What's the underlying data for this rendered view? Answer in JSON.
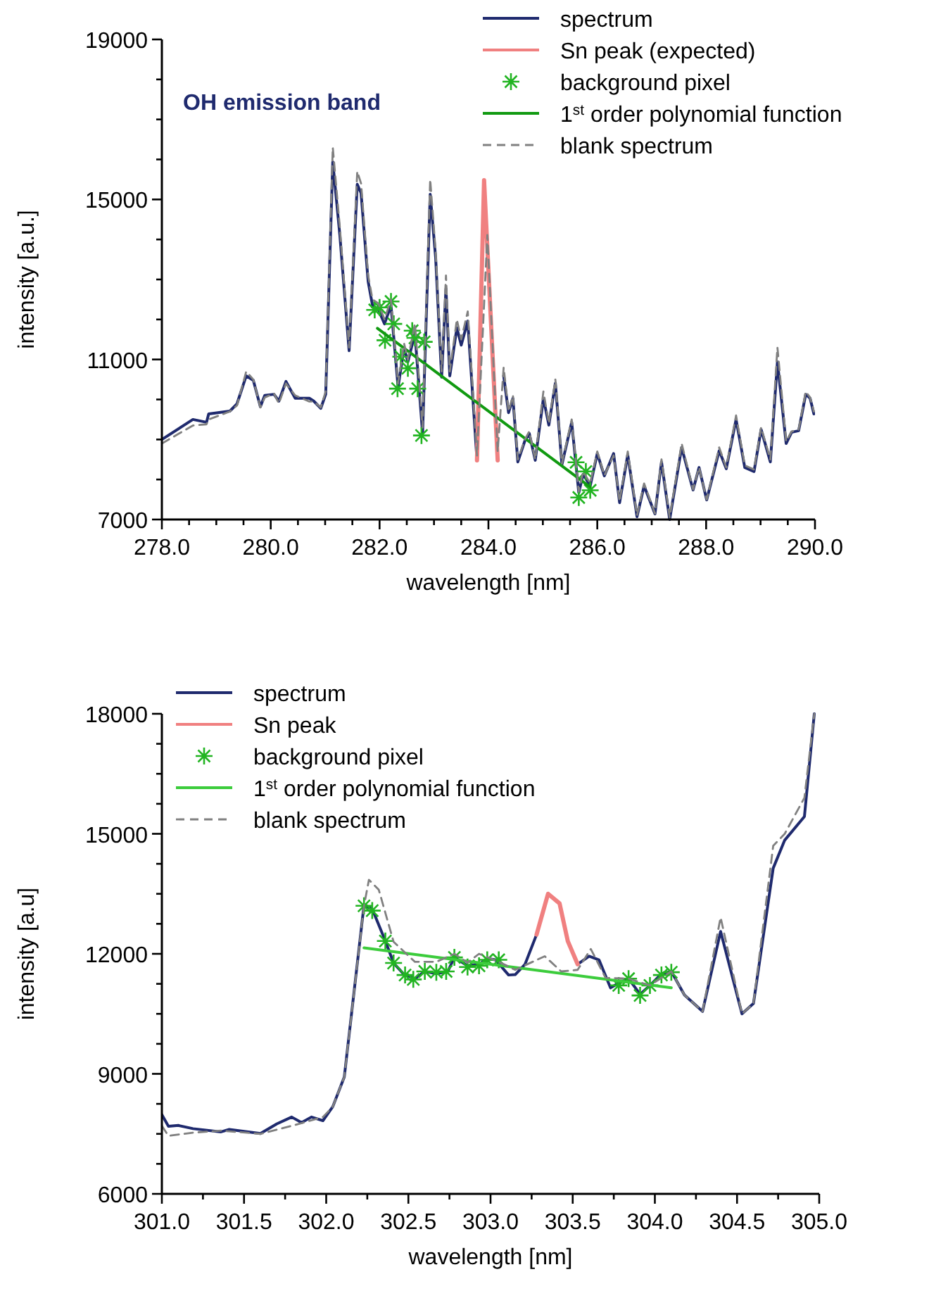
{
  "chart_data": [
    {
      "type": "line",
      "xlabel": "wavelength [nm]",
      "ylabel": "intensity [a.u.]",
      "annotations": [
        "OH emission band"
      ],
      "legend": "top right",
      "xlim": [
        278,
        290
      ],
      "ylim": [
        7000,
        19000
      ],
      "xticks": [
        {
          "value": 278,
          "label": "278.0"
        },
        {
          "value": 278.5,
          "label": null
        },
        {
          "value": 279,
          "label": null
        },
        {
          "value": 279.5,
          "label": null
        },
        {
          "value": 280,
          "label": "280.0"
        },
        {
          "value": 280.5,
          "label": null
        },
        {
          "value": 281,
          "label": null
        },
        {
          "value": 281.5,
          "label": null
        },
        {
          "value": 282,
          "label": "282.0"
        },
        {
          "value": 282.5,
          "label": null
        },
        {
          "value": 283,
          "label": null
        },
        {
          "value": 283.5,
          "label": null
        },
        {
          "value": 284,
          "label": "284.0"
        },
        {
          "value": 284.5,
          "label": null
        },
        {
          "value": 285,
          "label": null
        },
        {
          "value": 285.5,
          "label": null
        },
        {
          "value": 286,
          "label": "286.0"
        },
        {
          "value": 286.5,
          "label": null
        },
        {
          "value": 287,
          "label": null
        },
        {
          "value": 287.5,
          "label": null
        },
        {
          "value": 288,
          "label": "288.0"
        },
        {
          "value": 288.5,
          "label": null
        },
        {
          "value": 289,
          "label": null
        },
        {
          "value": 289.5,
          "label": null
        },
        {
          "value": 290,
          "label": "290.0"
        }
      ],
      "yticks": [
        7000,
        {
          "value": 8000,
          "label": null
        },
        {
          "value": 9000,
          "label": null
        },
        {
          "value": 10000,
          "label": null
        },
        11000,
        {
          "value": 12000,
          "label": null
        },
        {
          "value": 13000,
          "label": null
        },
        {
          "value": 14000,
          "label": null
        },
        15000,
        {
          "value": 16000,
          "label": null
        },
        {
          "value": 17000,
          "label": null
        },
        {
          "value": 18000,
          "label": null
        },
        19000
      ],
      "series": [
        {
          "name": "spectrum",
          "type": "line",
          "color": "#1f2a6e",
          "line_style": "solid",
          "x": [
            278.0,
            278.57,
            278.82,
            278.86,
            279.25,
            279.38,
            279.55,
            279.68,
            279.81,
            279.89,
            280.06,
            280.15,
            280.28,
            280.45,
            280.71,
            280.79,
            280.92,
            281.01,
            281.14,
            281.27,
            281.44,
            281.59,
            281.66,
            281.79,
            281.87,
            281.98,
            282.09,
            282.21,
            282.34,
            282.45,
            282.52,
            282.65,
            282.79,
            282.93,
            283.03,
            283.14,
            283.22,
            283.29,
            283.42,
            283.5,
            283.62,
            283.79,
            283.92,
            284.28,
            284.37,
            284.45,
            284.54,
            284.67,
            284.75,
            284.86,
            285.01,
            285.11,
            285.23,
            285.35,
            285.53,
            285.66,
            285.74,
            285.87,
            286.0,
            286.13,
            286.3,
            286.41,
            286.56,
            286.73,
            286.86,
            287.06,
            287.18,
            287.33,
            287.55,
            287.76,
            287.87,
            288.01,
            288.24,
            288.37,
            288.55,
            288.71,
            288.88,
            289.01,
            289.18,
            289.31,
            289.47,
            289.57,
            289.7,
            289.83,
            289.91,
            289.98
          ],
          "values": [
            9000,
            9500,
            9430,
            9640,
            9710,
            9890,
            10590,
            10480,
            9820,
            10100,
            10130,
            9960,
            10450,
            10030,
            10030,
            9960,
            9780,
            10130,
            15940,
            14110,
            11220,
            15380,
            15160,
            12950,
            12350,
            12240,
            11890,
            12350,
            10310,
            11290,
            10940,
            11650,
            9150,
            15130,
            13550,
            10560,
            12770,
            10590,
            11790,
            11360,
            11960,
            8480,
            null,
            10590,
            9670,
            10030,
            8440,
            8970,
            9150,
            8480,
            10030,
            9360,
            10410,
            8370,
            9430,
            7670,
            8130,
            7840,
            8650,
            8090,
            8650,
            7420,
            8620,
            7070,
            7840,
            7140,
            8440,
            7000,
            8800,
            7740,
            8300,
            7490,
            8720,
            8270,
            9500,
            8300,
            8200,
            9250,
            8440,
            10940,
            8900,
            9180,
            9220,
            10130,
            10030,
            9640
          ]
        },
        {
          "name": "Sn peak (expected)",
          "type": "line",
          "color": "#f08080",
          "line_style": "solid",
          "x": [
            283.79,
            283.92,
            284.17
          ],
          "values": [
            8480,
            15480,
            8480
          ]
        },
        {
          "name": "background pixel",
          "type": "scatter",
          "color": "#22b422",
          "marker": "cross",
          "x": [
            281.91,
            282.0,
            282.21,
            282.26,
            282.1,
            282.39,
            282.52,
            282.33,
            282.6,
            282.65,
            282.82,
            282.7,
            282.77,
            285.61,
            285.79,
            285.87,
            285.66
          ],
          "values": [
            12240,
            12300,
            12450,
            11890,
            11480,
            11070,
            10780,
            10270,
            11720,
            11540,
            11440,
            10270,
            9100,
            8430,
            8200,
            7730,
            7550
          ]
        },
        {
          "name": "1$^{st}$ order polynomial function",
          "type": "line",
          "color": "#119a11",
          "line_style": "solid",
          "x": [
            281.96,
            285.87
          ],
          "values": [
            11780,
            7810
          ]
        },
        {
          "name": "blank spectrum",
          "type": "line",
          "color": "#808080",
          "line_style": "dashed",
          "x": [
            278.0,
            278.57,
            278.82,
            278.86,
            279.25,
            279.38,
            279.55,
            279.68,
            279.81,
            279.89,
            280.06,
            280.15,
            280.28,
            280.45,
            280.71,
            280.79,
            280.92,
            281.01,
            281.14,
            281.27,
            281.44,
            281.59,
            281.66,
            281.79,
            281.87,
            281.98,
            282.09,
            282.21,
            282.34,
            282.45,
            282.52,
            282.65,
            282.79,
            282.93,
            283.03,
            283.14,
            283.22,
            283.29,
            283.42,
            283.5,
            283.62,
            283.79,
            283.98,
            284.17,
            284.28,
            284.37,
            284.45,
            284.54,
            284.67,
            284.75,
            284.86,
            285.01,
            285.11,
            285.23,
            285.35,
            285.53,
            285.66,
            285.74,
            285.87,
            286.0,
            286.13,
            286.3,
            286.41,
            286.56,
            286.73,
            286.86,
            287.06,
            287.18,
            287.33,
            287.55,
            287.76,
            287.87,
            288.01,
            288.24,
            288.37,
            288.55,
            288.71,
            288.88,
            289.01,
            289.18,
            289.31,
            289.47,
            289.57,
            289.7,
            289.83,
            289.91,
            289.98
          ],
          "values": [
            8900,
            9350,
            9380,
            9500,
            9700,
            9850,
            10700,
            10500,
            9800,
            10050,
            10150,
            9900,
            10400,
            10100,
            9950,
            9950,
            9800,
            10200,
            16300,
            14300,
            11300,
            15700,
            15400,
            13100,
            12500,
            12400,
            12000,
            12500,
            10400,
            11400,
            11000,
            11900,
            9300,
            15500,
            13700,
            10700,
            13100,
            10700,
            12000,
            11500,
            12200,
            8600,
            14110,
            8700,
            10800,
            9700,
            10100,
            8500,
            9000,
            9200,
            8500,
            10200,
            9400,
            10500,
            8400,
            9500,
            7700,
            8200,
            7900,
            8700,
            8100,
            8600,
            7450,
            8700,
            7100,
            7900,
            7150,
            8500,
            7050,
            8900,
            7750,
            8300,
            7500,
            8800,
            8300,
            9600,
            8350,
            8250,
            9300,
            8500,
            11300,
            8950,
            9200,
            9250,
            10200,
            10050,
            9700
          ]
        }
      ]
    },
    {
      "type": "line",
      "xlabel": "wavelength [nm]",
      "ylabel": "intensity [a.u]",
      "legend": "top left",
      "xlim": [
        301,
        305
      ],
      "ylim": [
        6000,
        18000
      ],
      "xticks": [
        {
          "value": 301,
          "label": "301.0"
        },
        {
          "value": 301.25,
          "label": null
        },
        {
          "value": 301.5,
          "label": "301.5"
        },
        {
          "value": 301.75,
          "label": null
        },
        {
          "value": 302,
          "label": "302.0"
        },
        {
          "value": 302.25,
          "label": null
        },
        {
          "value": 302.5,
          "label": "302.5"
        },
        {
          "value": 302.75,
          "label": null
        },
        {
          "value": 303,
          "label": "303.0"
        },
        {
          "value": 303.25,
          "label": null
        },
        {
          "value": 303.5,
          "label": "303.5"
        },
        {
          "value": 303.75,
          "label": null
        },
        {
          "value": 304,
          "label": "304.0"
        },
        {
          "value": 304.25,
          "label": null
        },
        {
          "value": 304.5,
          "label": "304.5"
        },
        {
          "value": 304.75,
          "label": null
        },
        {
          "value": 305,
          "label": "305.0"
        }
      ],
      "yticks": [
        6000,
        {
          "value": 6750,
          "label": null
        },
        {
          "value": 7500,
          "label": null
        },
        {
          "value": 8250,
          "label": null
        },
        9000,
        {
          "value": 9750,
          "label": null
        },
        {
          "value": 10500,
          "label": null
        },
        {
          "value": 11250,
          "label": null
        },
        12000,
        {
          "value": 12750,
          "label": null
        },
        {
          "value": 13500,
          "label": null
        },
        {
          "value": 14250,
          "label": null
        },
        15000,
        {
          "value": 15750,
          "label": null
        },
        {
          "value": 16500,
          "label": null
        },
        {
          "value": 17250,
          "label": null
        },
        18000
      ],
      "series": [
        {
          "name": "spectrum",
          "type": "line",
          "color": "#1f2a6e",
          "line_style": "solid",
          "x": [
            301.0,
            301.04,
            301.1,
            301.19,
            301.36,
            301.41,
            301.6,
            301.7,
            301.79,
            301.85,
            301.91,
            301.98,
            302.04,
            302.11,
            302.23,
            302.28,
            302.36,
            302.41,
            302.47,
            302.54,
            302.6,
            302.67,
            302.74,
            302.78,
            302.86,
            302.93,
            302.98,
            303.03,
            303.11,
            303.15,
            303.21,
            303.28,
            303.35,
            303.53,
            303.6,
            303.66,
            303.73,
            303.78,
            303.84,
            303.91,
            303.97,
            304.04,
            304.1,
            304.18,
            304.29,
            304.4,
            304.53,
            304.6,
            304.72,
            304.79,
            304.91,
            304.97
          ],
          "values": [
            7980,
            7690,
            7710,
            7630,
            7550,
            7610,
            7510,
            7750,
            7920,
            7780,
            7920,
            7830,
            8180,
            8920,
            13220,
            13120,
            12320,
            11770,
            11500,
            11380,
            11560,
            11500,
            11560,
            11910,
            11700,
            11740,
            11880,
            11850,
            11470,
            11480,
            11740,
            12480,
            null,
            11740,
            11940,
            11850,
            11150,
            11270,
            11380,
            10990,
            11210,
            11500,
            11560,
            10970,
            10560,
            12560,
            10500,
            10760,
            14140,
            14840,
            15430,
            18000
          ]
        },
        {
          "name": "Sn peak",
          "type": "line",
          "color": "#f08080",
          "line_style": "solid",
          "x": [
            303.28,
            303.35,
            303.42,
            303.47,
            303.53
          ],
          "values": [
            12480,
            13500,
            13260,
            12320,
            11740
          ]
        },
        {
          "name": "background pixel",
          "type": "scatter",
          "color": "#22b422",
          "marker": "cross",
          "x": [
            302.23,
            302.28,
            302.36,
            302.41,
            302.48,
            302.53,
            302.6,
            302.67,
            302.73,
            302.78,
            302.86,
            302.93,
            302.98,
            303.05,
            303.78,
            303.84,
            303.91,
            303.97,
            304.04,
            304.1
          ],
          "values": [
            13200,
            13080,
            12320,
            11770,
            11470,
            11360,
            11560,
            11540,
            11560,
            11910,
            11670,
            11700,
            11850,
            11850,
            11210,
            11380,
            10960,
            11210,
            11470,
            11540
          ]
        },
        {
          "name": "1$^{st}$ order polynomial function",
          "type": "line",
          "color": "#3ccc3c",
          "line_style": "solid",
          "x": [
            302.23,
            304.1
          ],
          "values": [
            12150,
            11150
          ]
        },
        {
          "name": "blank spectrum",
          "type": "line",
          "color": "#808080",
          "line_style": "dashed",
          "x": [
            301.0,
            301.04,
            301.19,
            301.36,
            301.6,
            301.79,
            301.98,
            302.04,
            302.11,
            302.23,
            302.26,
            302.32,
            302.41,
            302.54,
            302.67,
            302.78,
            302.86,
            302.93,
            303.05,
            303.15,
            303.33,
            303.43,
            303.53,
            303.61,
            303.7,
            303.84,
            303.97,
            304.1,
            304.18,
            304.29,
            304.4,
            304.53,
            304.6,
            304.72,
            304.79,
            304.91,
            304.97
          ],
          "values": [
            7700,
            7450,
            7530,
            7580,
            7500,
            7700,
            7920,
            8180,
            8920,
            13200,
            13850,
            13600,
            12300,
            11800,
            11800,
            12000,
            11780,
            12000,
            11800,
            11600,
            11940,
            11560,
            11600,
            12120,
            11400,
            11380,
            11210,
            11560,
            10970,
            10560,
            12910,
            10500,
            10760,
            14700,
            15000,
            15900,
            18000
          ]
        }
      ]
    }
  ]
}
